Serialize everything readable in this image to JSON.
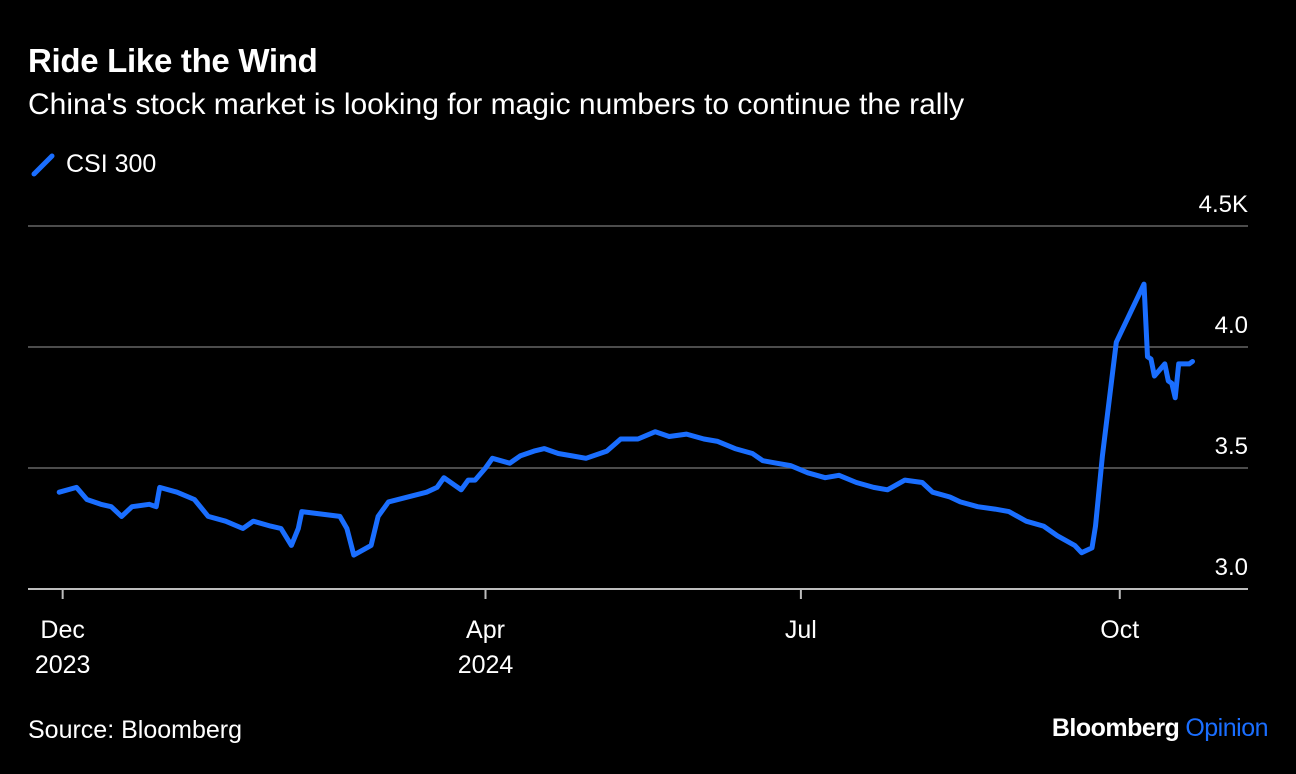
{
  "header": {
    "title": "Ride Like the Wind",
    "subtitle": "China's stock market is looking for magic numbers to continue the rally"
  },
  "footer": {
    "source": "Source: Bloomberg",
    "brand_name": "Bloomberg",
    "brand_suffix": "Opinion"
  },
  "colors": {
    "background": "#000000",
    "series": "#1A6EFF",
    "grid": "#666666",
    "text": "#ffffff"
  },
  "chart_data": {
    "type": "line",
    "title": "Ride Like the Wind",
    "subtitle": "China's stock market is looking for magic numbers to continue the rally",
    "legend": [
      "CSI 300"
    ],
    "legend_position": "top-left",
    "grid": true,
    "y_axis_position": "right",
    "ylim": [
      3.0,
      4.5
    ],
    "y_ticks": [
      {
        "value": 3.0,
        "label": "3.0"
      },
      {
        "value": 3.5,
        "label": "3.5"
      },
      {
        "value": 4.0,
        "label": "4.0"
      },
      {
        "value": 4.5,
        "label": "4.5K"
      }
    ],
    "xlim": [
      "2023-11-21",
      "2024-11-07"
    ],
    "x_ticks": [
      {
        "date": "2023-12-01",
        "label": "Dec",
        "sublabel": "2023"
      },
      {
        "date": "2024-04-01",
        "label": "Apr",
        "sublabel": "2024"
      },
      {
        "date": "2024-07-01",
        "label": "Jul",
        "sublabel": ""
      },
      {
        "date": "2024-10-01",
        "label": "Oct",
        "sublabel": ""
      }
    ],
    "series": [
      {
        "name": "CSI 300",
        "points": [
          [
            "2023-11-30",
            3.4
          ],
          [
            "2023-12-05",
            3.42
          ],
          [
            "2023-12-08",
            3.37
          ],
          [
            "2023-12-12",
            3.35
          ],
          [
            "2023-12-15",
            3.34
          ],
          [
            "2023-12-18",
            3.3
          ],
          [
            "2023-12-21",
            3.34
          ],
          [
            "2023-12-26",
            3.35
          ],
          [
            "2023-12-28",
            3.34
          ],
          [
            "2023-12-29",
            3.42
          ],
          [
            "2024-01-03",
            3.4
          ],
          [
            "2024-01-08",
            3.37
          ],
          [
            "2024-01-12",
            3.3
          ],
          [
            "2024-01-17",
            3.28
          ],
          [
            "2024-01-22",
            3.25
          ],
          [
            "2024-01-25",
            3.28
          ],
          [
            "2024-01-30",
            3.26
          ],
          [
            "2024-02-02",
            3.25
          ],
          [
            "2024-02-05",
            3.18
          ],
          [
            "2024-02-07",
            3.25
          ],
          [
            "2024-02-08",
            3.32
          ],
          [
            "2024-02-19",
            3.3
          ],
          [
            "2024-02-21",
            3.25
          ],
          [
            "2024-02-23",
            3.14
          ],
          [
            "2024-02-28",
            3.18
          ],
          [
            "2024-03-01",
            3.3
          ],
          [
            "2024-03-04",
            3.36
          ],
          [
            "2024-03-15",
            3.4
          ],
          [
            "2024-03-18",
            3.42
          ],
          [
            "2024-03-20",
            3.46
          ],
          [
            "2024-03-25",
            3.41
          ],
          [
            "2024-03-27",
            3.45
          ],
          [
            "2024-03-29",
            3.45
          ],
          [
            "2024-04-01",
            3.5
          ],
          [
            "2024-04-03",
            3.54
          ],
          [
            "2024-04-08",
            3.52
          ],
          [
            "2024-04-11",
            3.55
          ],
          [
            "2024-04-15",
            3.57
          ],
          [
            "2024-04-18",
            3.58
          ],
          [
            "2024-04-22",
            3.56
          ],
          [
            "2024-04-26",
            3.55
          ],
          [
            "2024-04-30",
            3.54
          ],
          [
            "2024-05-06",
            3.57
          ],
          [
            "2024-05-10",
            3.62
          ],
          [
            "2024-05-15",
            3.62
          ],
          [
            "2024-05-20",
            3.65
          ],
          [
            "2024-05-24",
            3.63
          ],
          [
            "2024-05-29",
            3.64
          ],
          [
            "2024-06-03",
            3.62
          ],
          [
            "2024-06-07",
            3.61
          ],
          [
            "2024-06-12",
            3.58
          ],
          [
            "2024-06-17",
            3.56
          ],
          [
            "2024-06-20",
            3.53
          ],
          [
            "2024-06-24",
            3.52
          ],
          [
            "2024-06-28",
            3.51
          ],
          [
            "2024-07-03",
            3.48
          ],
          [
            "2024-07-08",
            3.46
          ],
          [
            "2024-07-12",
            3.47
          ],
          [
            "2024-07-17",
            3.44
          ],
          [
            "2024-07-22",
            3.42
          ],
          [
            "2024-07-26",
            3.41
          ],
          [
            "2024-07-31",
            3.45
          ],
          [
            "2024-08-05",
            3.44
          ],
          [
            "2024-08-08",
            3.4
          ],
          [
            "2024-08-13",
            3.38
          ],
          [
            "2024-08-16",
            3.36
          ],
          [
            "2024-08-21",
            3.34
          ],
          [
            "2024-08-26",
            3.33
          ],
          [
            "2024-08-30",
            3.32
          ],
          [
            "2024-09-04",
            3.28
          ],
          [
            "2024-09-09",
            3.26
          ],
          [
            "2024-09-13",
            3.22
          ],
          [
            "2024-09-18",
            3.18
          ],
          [
            "2024-09-20",
            3.15
          ],
          [
            "2024-09-23",
            3.17
          ],
          [
            "2024-09-24",
            3.26
          ],
          [
            "2024-09-26",
            3.55
          ],
          [
            "2024-09-30",
            4.02
          ],
          [
            "2024-10-08",
            4.26
          ],
          [
            "2024-10-09",
            3.96
          ],
          [
            "2024-10-10",
            3.95
          ],
          [
            "2024-10-11",
            3.88
          ],
          [
            "2024-10-14",
            3.93
          ],
          [
            "2024-10-15",
            3.86
          ],
          [
            "2024-10-16",
            3.85
          ],
          [
            "2024-10-17",
            3.79
          ],
          [
            "2024-10-18",
            3.93
          ],
          [
            "2024-10-21",
            3.93
          ],
          [
            "2024-10-22",
            3.94
          ]
        ]
      }
    ]
  }
}
